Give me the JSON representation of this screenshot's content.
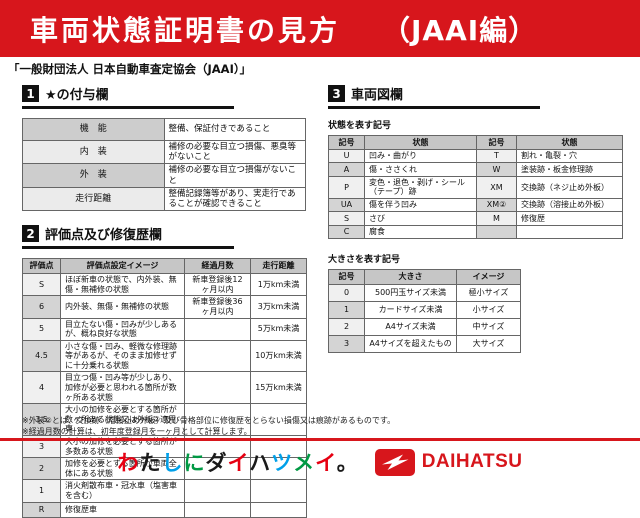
{
  "banner": {
    "title": "車両状態証明書の見方",
    "edition": "（JAAI編）"
  },
  "subtitle": "「一般財団法人 日本自動車査定協会（JAAI）」",
  "section1": {
    "num": "1",
    "title": "★の付与欄",
    "rows": [
      {
        "label": "機　能",
        "desc": "整備、保証付きであること"
      },
      {
        "label": "内　装",
        "desc": "補修の必要な目立つ損傷、悪臭等がないこと"
      },
      {
        "label": "外　装",
        "desc": "補修の必要な目立つ損傷がないこと"
      },
      {
        "label": "走行距離",
        "desc": "整備記録簿等があり、実走行であることが確認できること"
      }
    ]
  },
  "section2": {
    "num": "2",
    "title": "評価点及び修復歴欄",
    "headers": [
      "評価点",
      "評価点設定イメージ",
      "経過月数",
      "走行距離"
    ],
    "rows": [
      [
        "S",
        "ほぼ新車の状態で、内外装、無傷・無補修の状態",
        "新車登録後12ヶ月以内",
        "1万km未満"
      ],
      [
        "6",
        "内外装、無傷・無補修の状態",
        "新車登録後36ヶ月以内",
        "3万km未満"
      ],
      [
        "5",
        "目立たない傷・凹みが少しあるが、概ね良好な状態",
        "",
        "5万km未満"
      ],
      [
        "4.5",
        "小さな傷・凹み、軽微な修理跡等があるが、そのまま加修せずに十分乗れる状態",
        "",
        "10万km未満"
      ],
      [
        "4",
        "目立つ傷・凹み等が少しあり、加修が必要と思われる箇所が数ヶ所ある状態",
        "",
        "15万km未満"
      ],
      [
        "3.5",
        "大小の加修を必要とする箇所が数ヶ所ある状態又は外板②適用車",
        "",
        ""
      ],
      [
        "3",
        "大小の加修を必要とする箇所が多数ある状態",
        "",
        ""
      ],
      [
        "2",
        "加修を必要とする箇所が車両全体にある状態",
        "",
        ""
      ],
      [
        "1",
        "消火剤散布車・冠水車（塩害車を含む）",
        "",
        ""
      ],
      [
        "R",
        "修復歴車",
        "",
        ""
      ]
    ]
  },
  "section3": {
    "num": "3",
    "title": "車両図欄",
    "state_table": {
      "caption": "状態を表す記号",
      "headers": [
        "記号",
        "状態",
        "記号",
        "状態"
      ],
      "rows": [
        [
          "U",
          "凹み・曲がり",
          "T",
          "割れ・亀裂・穴"
        ],
        [
          "A",
          "傷・ささくれ",
          "W",
          "塗装跡・板金修理跡"
        ],
        [
          "P",
          "変色・退色・剥げ・シール（テープ）跡",
          "XM",
          "交換跡（ネジ止め外板）"
        ],
        [
          "UA",
          "傷を伴う凹み",
          "XM②",
          "交換跡（溶接止め外板）"
        ],
        [
          "S",
          "さび",
          "M",
          "修復歴"
        ],
        [
          "C",
          "腐食",
          "",
          ""
        ]
      ]
    },
    "size_table": {
      "caption": "大きさを表す記号",
      "headers": [
        "記号",
        "大きさ",
        "イメージ"
      ],
      "rows": [
        [
          "0",
          "500円玉サイズ未満",
          "極小サイズ"
        ],
        [
          "1",
          "カードサイズ未満",
          "小サイズ"
        ],
        [
          "2",
          "A4サイズ未満",
          "中サイズ"
        ],
        [
          "3",
          "A4サイズを超えたもの",
          "大サイズ"
        ]
      ]
    }
  },
  "footnotes": [
    "※外装②とは、交換跡（溶接止め外板）及び骨格部位に修復歴をとらない損傷又は痕跡があるものです。",
    "※経過月数の計算は、初年度登録月を一ヶ月として計算します。"
  ],
  "footer": {
    "slogan_chars": [
      {
        "ch": "わ",
        "color": "#e60012"
      },
      {
        "ch": "た",
        "color": "#1a1a1a"
      },
      {
        "ch": "し",
        "color": "#00a0e9"
      },
      {
        "ch": "に",
        "color": "#009944"
      },
      {
        "ch": "ダ",
        "color": "#1a1a1a"
      },
      {
        "ch": "イ",
        "color": "#e60012"
      },
      {
        "ch": "ハ",
        "color": "#1a1a1a"
      },
      {
        "ch": "ツ",
        "color": "#00a0e9"
      },
      {
        "ch": "メ",
        "color": "#009944"
      },
      {
        "ch": "イ",
        "color": "#e60012"
      },
      {
        "ch": "。",
        "color": "#1a1a1a"
      }
    ],
    "brand": "DAIHATSU"
  },
  "colors": {
    "banner_red": "#d7161c",
    "brand_red": "#e60012"
  }
}
